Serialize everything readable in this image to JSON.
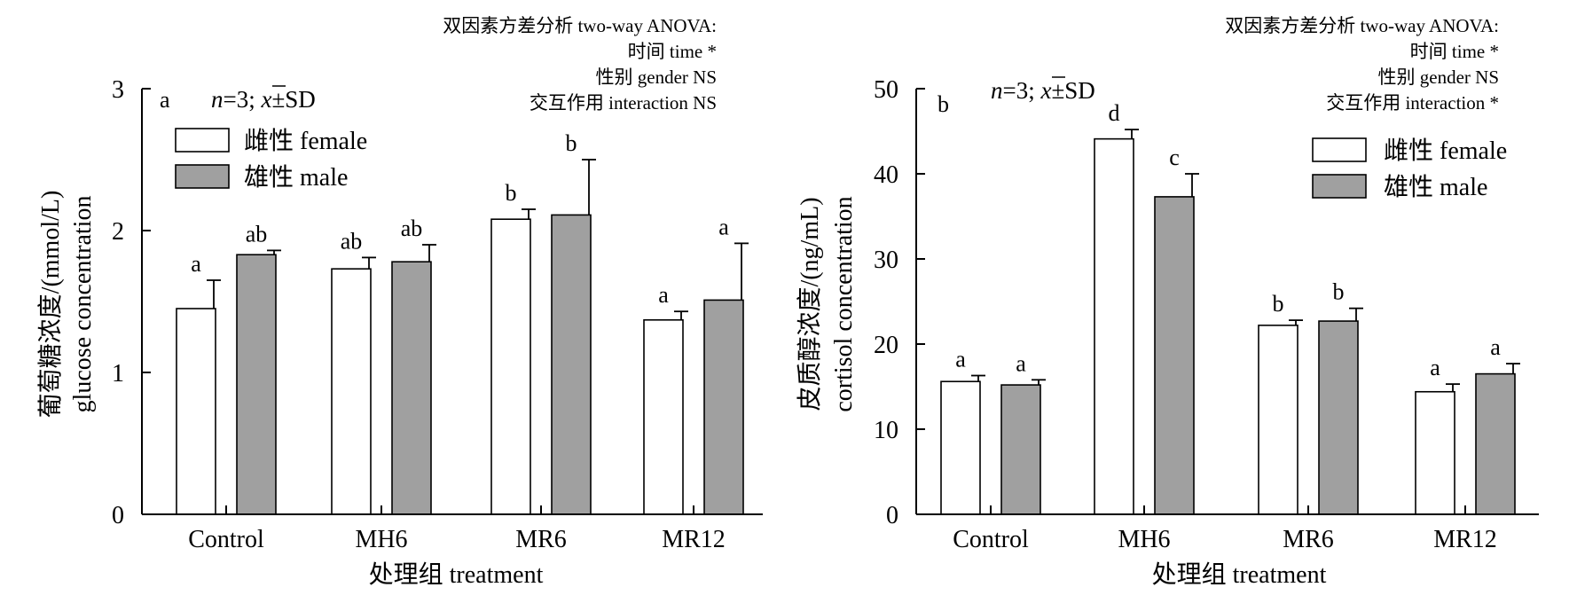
{
  "chart_data": [
    {
      "type": "bar",
      "panel_label": "a",
      "sample_note": {
        "n": "n",
        "n_value": "=3; ",
        "xbar": "x",
        "pm_sd": "±SD"
      },
      "stats_title": "双因素方差分析 two-way ANOVA:",
      "stats_lines": [
        "时间 time *",
        "性别 gender NS",
        "交互作用 interaction NS"
      ],
      "categories": [
        "Control",
        "MH6",
        "MR6",
        "MR12"
      ],
      "series": [
        {
          "name": "雌性 female",
          "fill": "#ffffff",
          "values": [
            1.45,
            1.73,
            2.08,
            1.37
          ],
          "errors": [
            0.2,
            0.08,
            0.07,
            0.06
          ],
          "labels": [
            "a",
            "ab",
            "b",
            "a"
          ]
        },
        {
          "name": "雄性 male",
          "fill": "#a0a0a0",
          "values": [
            1.83,
            1.78,
            2.11,
            1.51
          ],
          "errors": [
            0.03,
            0.12,
            0.39,
            0.4
          ],
          "labels": [
            "ab",
            "ab",
            "b",
            "a"
          ]
        }
      ],
      "ylim": [
        0,
        3
      ],
      "yticks": [
        0,
        1,
        2,
        3
      ],
      "ylabel_line1": "葡萄糖浓度/(mmol/L)",
      "ylabel_line2": "glucose concentration",
      "xlabel": "处理组 treatment",
      "legend_position": "top-left"
    },
    {
      "type": "bar",
      "panel_label": "b",
      "sample_note": {
        "n": "n",
        "n_value": "=3; ",
        "xbar": "x",
        "pm_sd": "±SD"
      },
      "stats_title": "双因素方差分析 two-way ANOVA:",
      "stats_lines": [
        "时间 time *",
        "性别 gender NS",
        "交互作用 interaction *"
      ],
      "categories": [
        "Control",
        "MH6",
        "MR6",
        "MR12"
      ],
      "series": [
        {
          "name": "雌性 female",
          "fill": "#ffffff",
          "values": [
            15.6,
            44.1,
            22.2,
            14.4
          ],
          "errors": [
            0.7,
            1.1,
            0.6,
            0.9
          ],
          "labels": [
            "a",
            "d",
            "b",
            "a"
          ]
        },
        {
          "name": "雄性 male",
          "fill": "#a0a0a0",
          "values": [
            15.2,
            37.3,
            22.7,
            16.5
          ],
          "errors": [
            0.6,
            2.7,
            1.5,
            1.2
          ],
          "labels": [
            "a",
            "c",
            "b",
            "a"
          ]
        }
      ],
      "ylim": [
        0,
        50
      ],
      "yticks": [
        0,
        10,
        20,
        30,
        40,
        50
      ],
      "ylabel_line1": "皮质醇浓度/(ng/mL)",
      "ylabel_line2": "cortisol concentration",
      "xlabel": "处理组 treatment",
      "legend_position": "top-right"
    }
  ]
}
